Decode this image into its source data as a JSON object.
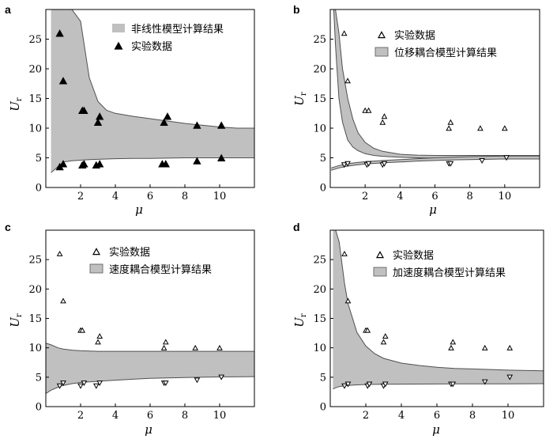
{
  "colors": {
    "band": "#c0c0c0",
    "band_edge": "#505050",
    "marker": "#000000",
    "frame": "#000000",
    "cyan_edge": "#4fa3a8"
  },
  "chart_data": [
    {
      "panel": "a",
      "type": "scatter",
      "xlabel": "μ",
      "ylabel": "U",
      "ylabel_sub": "r",
      "xlim": [
        0,
        12
      ],
      "ylim": [
        0,
        30
      ],
      "xticks": [
        2,
        4,
        6,
        8,
        10
      ],
      "yticks": [
        0,
        5,
        10,
        15,
        20,
        25
      ],
      "legend": [
        {
          "label": "非线性模型计算结果",
          "kind": "band"
        },
        {
          "label": "实验数据",
          "kind": "filled-triangle-up"
        }
      ],
      "band": {
        "x": [
          0.3,
          1.0,
          1.5,
          2.0,
          2.5,
          3.0,
          3.5,
          4.0,
          5.0,
          6.0,
          7.0,
          8.0,
          9.0,
          10.0,
          11.0,
          12.0
        ],
        "upper": [
          30,
          30,
          30,
          28,
          18.5,
          14.5,
          13.0,
          12.5,
          12.0,
          11.6,
          11.2,
          10.8,
          10.5,
          10.2,
          10.0,
          10.0
        ],
        "lower": [
          2.5,
          4.3,
          4.5,
          4.6,
          4.7,
          4.75,
          4.8,
          4.85,
          4.9,
          4.9,
          4.95,
          5.0,
          5.0,
          5.0,
          5.0,
          5.0
        ]
      },
      "points": [
        {
          "x": 0.8,
          "y": 26.0
        },
        {
          "x": 1.0,
          "y": 18.0
        },
        {
          "x": 2.1,
          "y": 13.0
        },
        {
          "x": 2.2,
          "y": 13.0
        },
        {
          "x": 3.0,
          "y": 11.0
        },
        {
          "x": 3.1,
          "y": 12.0
        },
        {
          "x": 6.8,
          "y": 11.0
        },
        {
          "x": 7.0,
          "y": 12.0
        },
        {
          "x": 8.7,
          "y": 10.5
        },
        {
          "x": 10.1,
          "y": 10.5
        },
        {
          "x": 0.8,
          "y": 3.5
        },
        {
          "x": 1.0,
          "y": 4.0
        },
        {
          "x": 2.1,
          "y": 3.8
        },
        {
          "x": 2.2,
          "y": 4.0
        },
        {
          "x": 2.9,
          "y": 3.8
        },
        {
          "x": 3.1,
          "y": 4.0
        },
        {
          "x": 6.7,
          "y": 4.0
        },
        {
          "x": 6.9,
          "y": 4.0
        },
        {
          "x": 8.7,
          "y": 4.5
        },
        {
          "x": 10.1,
          "y": 5.0
        }
      ]
    },
    {
      "panel": "b",
      "type": "scatter",
      "xlabel": "μ",
      "ylabel": "U",
      "ylabel_sub": "r",
      "xlim": [
        0,
        12
      ],
      "ylim": [
        0,
        30
      ],
      "xticks": [
        2,
        4,
        6,
        8,
        10
      ],
      "yticks": [
        0,
        5,
        10,
        15,
        20,
        25
      ],
      "legend": [
        {
          "label": "实验数据",
          "kind": "open-triangle-up"
        },
        {
          "label": "位移耦合模型计算结果",
          "kind": "band"
        }
      ],
      "band": {
        "x": [
          0.05,
          0.2,
          0.3,
          0.5,
          0.7,
          1.0,
          1.3,
          1.6,
          2.0,
          2.5,
          3.0,
          4.0,
          5.0,
          6.0,
          7.0,
          8.0,
          9.0,
          10.0,
          11.0,
          12.0
        ],
        "upper": [
          30,
          30,
          30,
          26.0,
          20.0,
          15.0,
          11.5,
          9.2,
          7.6,
          6.6,
          6.1,
          5.6,
          5.45,
          5.4,
          5.4,
          5.4,
          5.4,
          5.4,
          5.4,
          5.4
        ],
        "lower": [
          30,
          30,
          24.0,
          15.0,
          11.0,
          8.0,
          6.8,
          6.2,
          5.7,
          5.4,
          5.25,
          5.1,
          5.0,
          4.95,
          4.95,
          4.95,
          4.95,
          4.95,
          4.95,
          4.95
        ]
      },
      "band2": {
        "x": [
          0.05,
          0.5,
          1.0,
          1.5,
          2.0,
          3.0,
          4.0,
          5.0,
          6.0,
          7.0,
          8.0,
          9.0,
          10.0,
          11.0,
          12.0
        ],
        "upper": [
          3.3,
          3.7,
          4.0,
          4.2,
          4.35,
          4.55,
          4.7,
          4.85,
          5.0,
          5.1,
          5.2,
          5.25,
          5.3,
          5.3,
          5.3
        ],
        "lower": [
          2.9,
          3.3,
          3.6,
          3.8,
          3.95,
          4.15,
          4.3,
          4.45,
          4.55,
          4.65,
          4.7,
          4.75,
          4.8,
          4.8,
          4.8
        ]
      },
      "points": [
        {
          "x": 0.8,
          "y": 26.0,
          "m": "up"
        },
        {
          "x": 1.0,
          "y": 18.0,
          "m": "up"
        },
        {
          "x": 2.0,
          "y": 13.0,
          "m": "up"
        },
        {
          "x": 2.2,
          "y": 13.0,
          "m": "up"
        },
        {
          "x": 3.0,
          "y": 11.0,
          "m": "up"
        },
        {
          "x": 3.1,
          "y": 12.0,
          "m": "up"
        },
        {
          "x": 6.8,
          "y": 10.0,
          "m": "up"
        },
        {
          "x": 6.9,
          "y": 11.0,
          "m": "up"
        },
        {
          "x": 8.6,
          "y": 10.0,
          "m": "up"
        },
        {
          "x": 10.0,
          "y": 10.0,
          "m": "up"
        },
        {
          "x": 0.8,
          "y": 3.8,
          "m": "down"
        },
        {
          "x": 1.0,
          "y": 4.0,
          "m": "down"
        },
        {
          "x": 2.1,
          "y": 3.8,
          "m": "down"
        },
        {
          "x": 2.2,
          "y": 4.0,
          "m": "down"
        },
        {
          "x": 3.0,
          "y": 3.8,
          "m": "down"
        },
        {
          "x": 3.1,
          "y": 4.0,
          "m": "down"
        },
        {
          "x": 6.8,
          "y": 4.0,
          "m": "down"
        },
        {
          "x": 6.9,
          "y": 4.0,
          "m": "down"
        },
        {
          "x": 8.7,
          "y": 4.5,
          "m": "down"
        },
        {
          "x": 10.1,
          "y": 5.0,
          "m": "down"
        }
      ]
    },
    {
      "panel": "c",
      "type": "scatter",
      "xlabel": "μ",
      "ylabel": "U",
      "ylabel_sub": "r",
      "xlim": [
        0,
        12
      ],
      "ylim": [
        0,
        30
      ],
      "xticks": [
        2,
        4,
        6,
        8,
        10
      ],
      "yticks": [
        0,
        5,
        10,
        15,
        20,
        25
      ],
      "legend": [
        {
          "label": "实验数据",
          "kind": "open-triangle-up"
        },
        {
          "label": "速度耦合模型计算结果",
          "kind": "band"
        }
      ],
      "band": {
        "x": [
          0.0,
          0.3,
          0.7,
          1.0,
          1.5,
          2.0,
          3.0,
          4.0,
          5.0,
          6.0,
          8.0,
          10.0,
          12.0
        ],
        "upper": [
          10.8,
          10.5,
          10.0,
          9.8,
          9.6,
          9.5,
          9.4,
          9.4,
          9.4,
          9.4,
          9.4,
          9.4,
          9.4
        ],
        "lower": [
          2.2,
          2.8,
          3.3,
          3.6,
          3.9,
          4.1,
          4.3,
          4.5,
          4.65,
          4.8,
          4.95,
          5.05,
          5.1
        ]
      },
      "points": [
        {
          "x": 0.8,
          "y": 26.0,
          "m": "up"
        },
        {
          "x": 1.0,
          "y": 18.0,
          "m": "up"
        },
        {
          "x": 2.0,
          "y": 13.0,
          "m": "up"
        },
        {
          "x": 2.1,
          "y": 13.0,
          "m": "up"
        },
        {
          "x": 3.0,
          "y": 11.0,
          "m": "up"
        },
        {
          "x": 3.1,
          "y": 12.0,
          "m": "up"
        },
        {
          "x": 6.8,
          "y": 10.0,
          "m": "up"
        },
        {
          "x": 6.9,
          "y": 11.0,
          "m": "up"
        },
        {
          "x": 8.6,
          "y": 10.0,
          "m": "up"
        },
        {
          "x": 10.0,
          "y": 10.0,
          "m": "up"
        },
        {
          "x": 0.8,
          "y": 3.5,
          "m": "down"
        },
        {
          "x": 1.0,
          "y": 4.0,
          "m": "down"
        },
        {
          "x": 2.0,
          "y": 3.5,
          "m": "down"
        },
        {
          "x": 2.2,
          "y": 4.0,
          "m": "down"
        },
        {
          "x": 2.9,
          "y": 3.5,
          "m": "down"
        },
        {
          "x": 3.1,
          "y": 4.0,
          "m": "down"
        },
        {
          "x": 6.8,
          "y": 4.0,
          "m": "down"
        },
        {
          "x": 6.9,
          "y": 4.0,
          "m": "down"
        },
        {
          "x": 8.7,
          "y": 4.5,
          "m": "down"
        },
        {
          "x": 10.1,
          "y": 5.0,
          "m": "down"
        }
      ]
    },
    {
      "panel": "d",
      "type": "scatter",
      "xlabel": "μ",
      "ylabel": "U",
      "ylabel_sub": "r",
      "xlim": [
        0,
        12
      ],
      "ylim": [
        0,
        30
      ],
      "xticks": [
        2,
        4,
        6,
        8,
        10
      ],
      "yticks": [
        0,
        5,
        10,
        15,
        20,
        25
      ],
      "legend": [
        {
          "label": "实验数据",
          "kind": "open-triangle-up"
        },
        {
          "label": "加速度耦合模型计算结果",
          "kind": "band"
        }
      ],
      "band": {
        "x": [
          0.15,
          0.3,
          0.5,
          0.8,
          1.0,
          1.5,
          2.0,
          2.5,
          3.0,
          4.0,
          5.0,
          6.0,
          7.0,
          8.0,
          10.0,
          12.0
        ],
        "upper": [
          30,
          30,
          28.0,
          21.0,
          17.5,
          12.6,
          10.3,
          9.0,
          8.2,
          7.4,
          7.0,
          6.7,
          6.5,
          6.4,
          6.2,
          6.1
        ],
        "lower": [
          3.0,
          3.2,
          3.4,
          3.55,
          3.6,
          3.7,
          3.75,
          3.78,
          3.8,
          3.82,
          3.84,
          3.85,
          3.86,
          3.87,
          3.88,
          3.9
        ]
      },
      "points": [
        {
          "x": 0.8,
          "y": 26.0,
          "m": "up"
        },
        {
          "x": 1.0,
          "y": 18.0,
          "m": "up"
        },
        {
          "x": 2.0,
          "y": 13.0,
          "m": "up"
        },
        {
          "x": 2.1,
          "y": 13.0,
          "m": "up"
        },
        {
          "x": 3.0,
          "y": 11.0,
          "m": "up"
        },
        {
          "x": 3.1,
          "y": 12.0,
          "m": "up"
        },
        {
          "x": 6.8,
          "y": 10.0,
          "m": "up"
        },
        {
          "x": 6.9,
          "y": 11.0,
          "m": "up"
        },
        {
          "x": 8.7,
          "y": 10.0,
          "m": "up"
        },
        {
          "x": 10.1,
          "y": 10.0,
          "m": "up"
        },
        {
          "x": 0.8,
          "y": 3.5,
          "m": "down"
        },
        {
          "x": 1.0,
          "y": 3.8,
          "m": "down"
        },
        {
          "x": 2.1,
          "y": 3.5,
          "m": "down"
        },
        {
          "x": 2.2,
          "y": 3.8,
          "m": "down"
        },
        {
          "x": 3.0,
          "y": 3.5,
          "m": "down"
        },
        {
          "x": 3.1,
          "y": 3.8,
          "m": "down"
        },
        {
          "x": 6.8,
          "y": 3.8,
          "m": "down"
        },
        {
          "x": 6.9,
          "y": 3.8,
          "m": "down"
        },
        {
          "x": 8.7,
          "y": 4.2,
          "m": "down"
        },
        {
          "x": 10.1,
          "y": 5.0,
          "m": "down"
        }
      ]
    }
  ]
}
